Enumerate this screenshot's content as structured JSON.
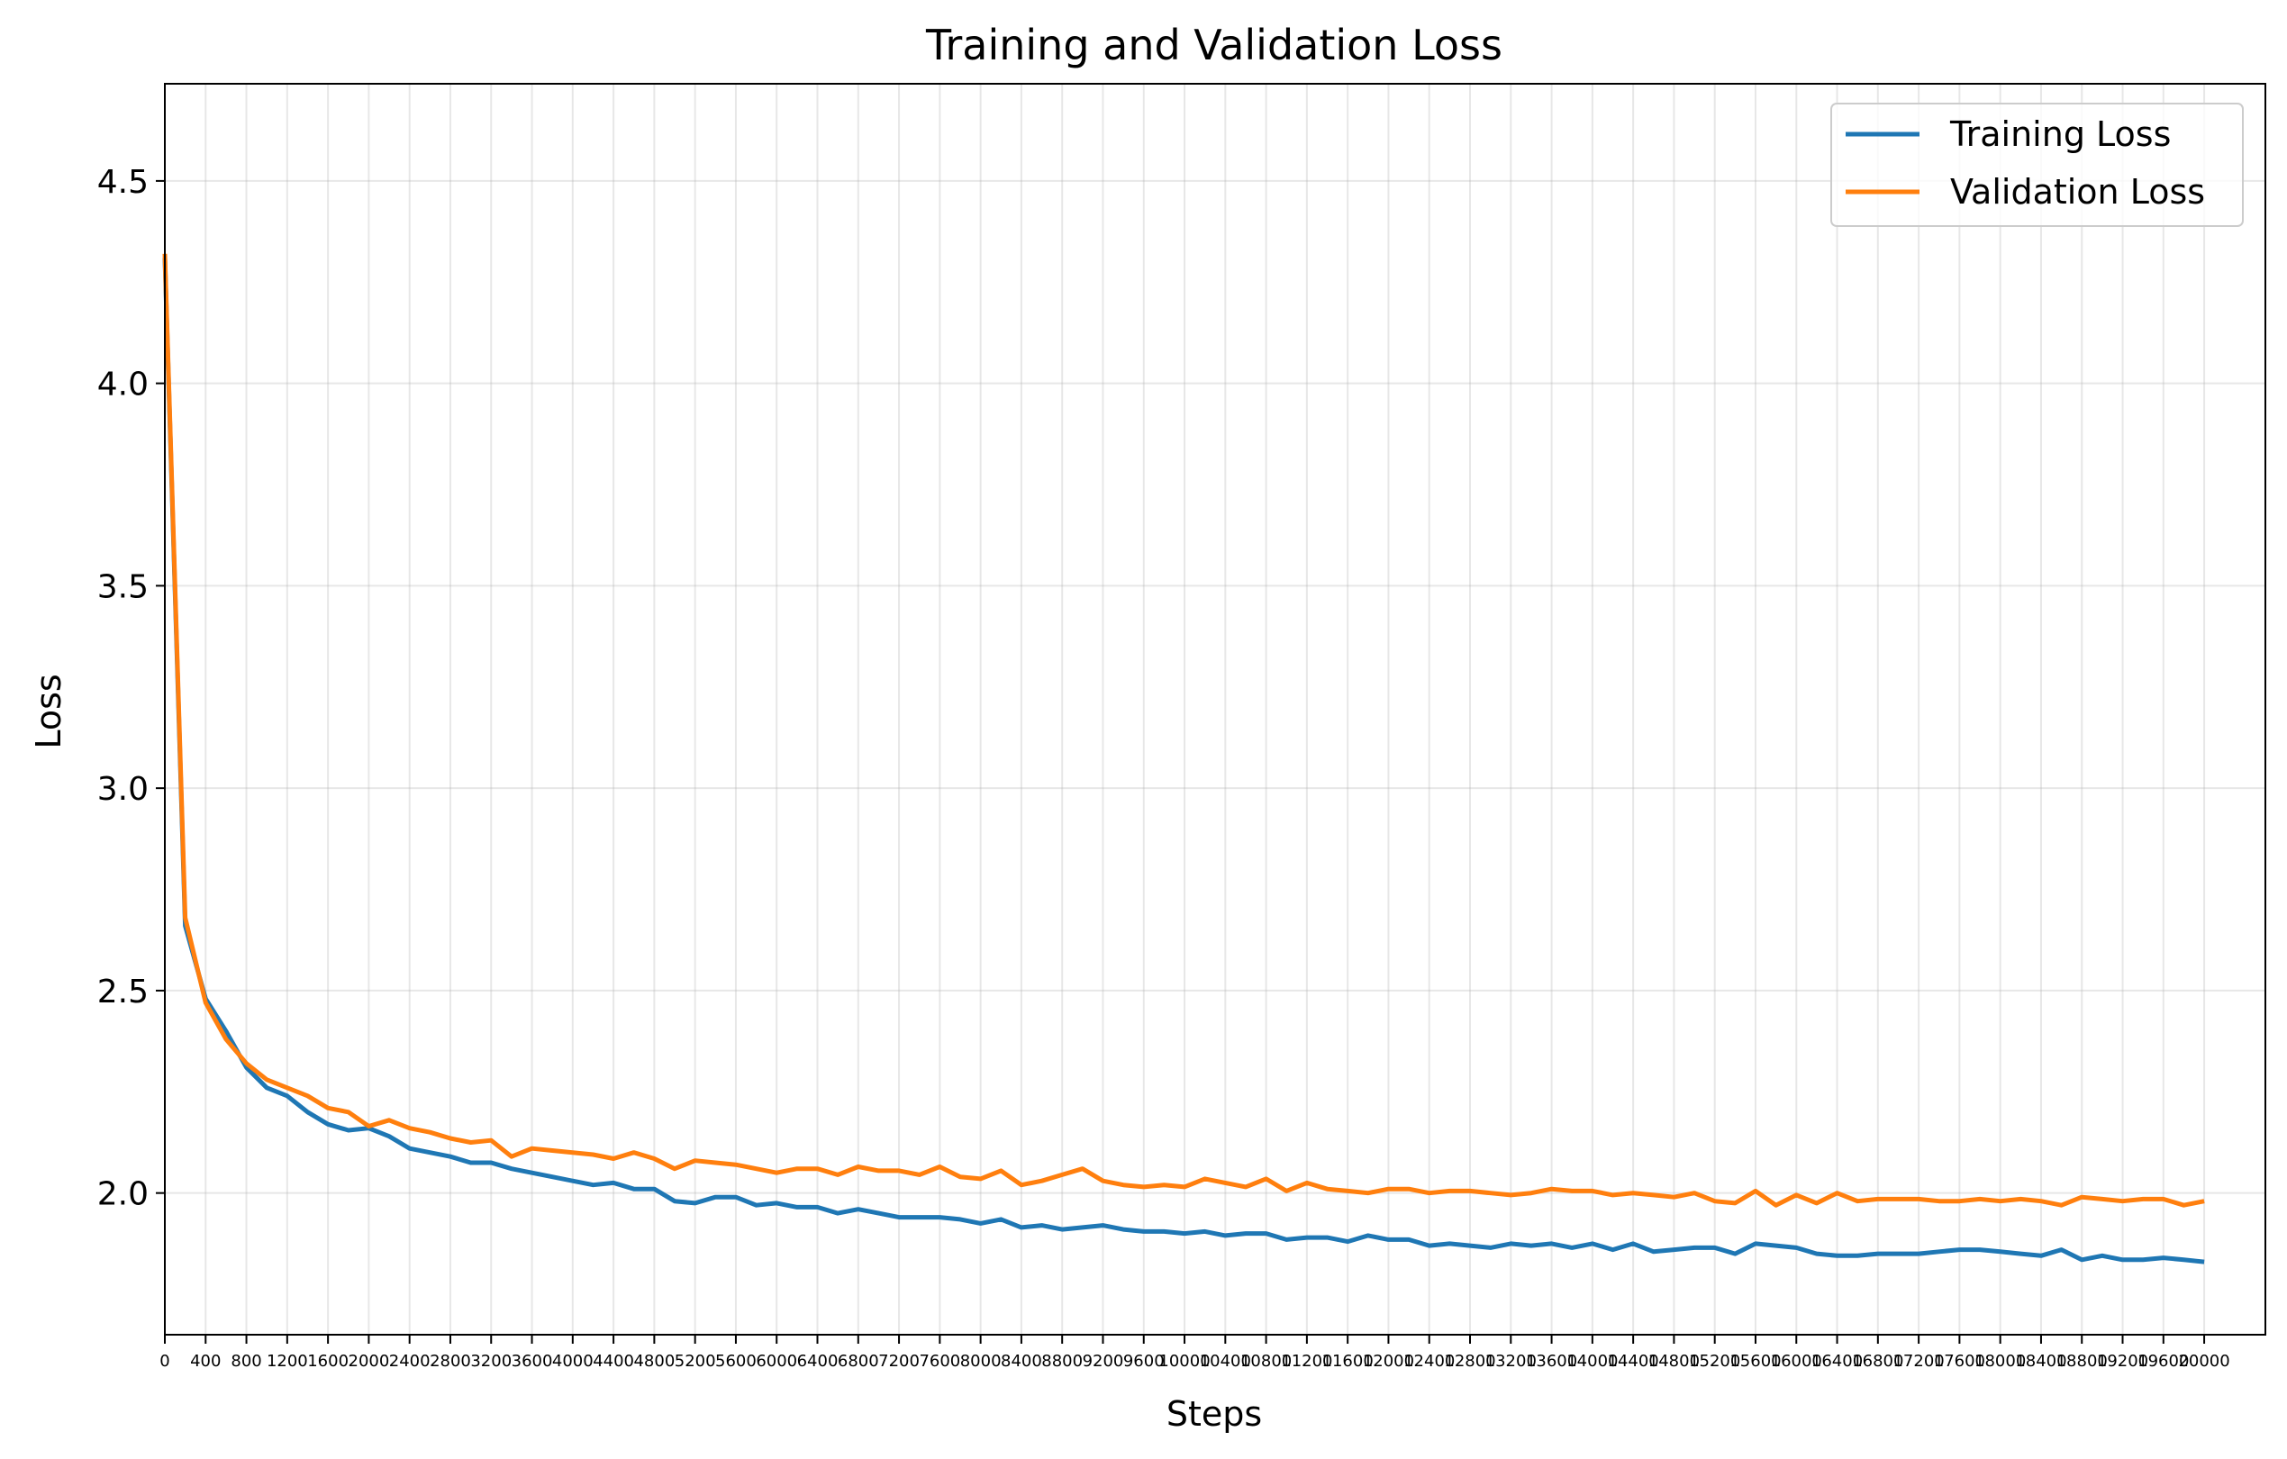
{
  "chart_data": {
    "type": "line",
    "title": "Training and Validation Loss",
    "xlabel": "Steps",
    "ylabel": "Loss",
    "xlim": [
      0,
      20600
    ],
    "ylim": [
      1.65,
      4.74
    ],
    "grid": true,
    "legend_position": "top-right",
    "x_ticks": [
      0,
      400,
      800,
      1200,
      1600,
      2000,
      2400,
      2800,
      3200,
      3600,
      4000,
      4400,
      4800,
      5200,
      5600,
      6000,
      6400,
      6800,
      7200,
      7600,
      8000,
      8400,
      8800,
      9200,
      9600,
      10000,
      10400,
      10800,
      11200,
      11600,
      12000,
      12400,
      12800,
      13200,
      13600,
      14000,
      14400,
      14800,
      15200,
      15600,
      16000,
      16400,
      16800,
      17200,
      17600,
      18000,
      18400,
      18800,
      19200,
      19600,
      20000
    ],
    "x_tick_labels": [
      "0",
      "400",
      "800",
      "1200",
      "1600",
      "2000",
      "2400",
      "2800",
      "3200",
      "3600",
      "4000",
      "4400",
      "4800",
      "5200",
      "5600",
      "6000",
      "6400",
      "6800",
      "7200",
      "7600",
      "8000",
      "8400",
      "8800",
      "9200",
      "9600",
      "10000",
      "10400",
      "10800",
      "11200",
      "11600",
      "12000",
      "12400",
      "12800",
      "13200",
      "13600",
      "14000",
      "14400",
      "14800",
      "15200",
      "15600",
      "16000",
      "16400",
      "16800",
      "17200",
      "17600",
      "18000",
      "18400",
      "18800",
      "19200",
      "19600",
      "20000"
    ],
    "y_ticks": [
      2.0,
      2.5,
      3.0,
      3.5,
      4.0,
      4.5
    ],
    "y_tick_labels": [
      "2.0",
      "2.5",
      "3.0",
      "3.5",
      "4.0",
      "4.5"
    ],
    "x": [
      0,
      200,
      400,
      600,
      800,
      1000,
      1200,
      1400,
      1600,
      1800,
      2000,
      2200,
      2400,
      2600,
      2800,
      3000,
      3200,
      3400,
      3600,
      3800,
      4000,
      4200,
      4400,
      4600,
      4800,
      5000,
      5200,
      5400,
      5600,
      5800,
      6000,
      6200,
      6400,
      6600,
      6800,
      7000,
      7200,
      7400,
      7600,
      7800,
      8000,
      8200,
      8400,
      8600,
      8800,
      9000,
      9200,
      9400,
      9600,
      9800,
      10000,
      10200,
      10400,
      10600,
      10800,
      11000,
      11200,
      11400,
      11600,
      11800,
      12000,
      12200,
      12400,
      12600,
      12800,
      13000,
      13200,
      13400,
      13600,
      13800,
      14000,
      14200,
      14400,
      14600,
      14800,
      15000,
      15200,
      15400,
      15600,
      15800,
      16000,
      16200,
      16400,
      16600,
      16800,
      17000,
      17200,
      17400,
      17600,
      17800,
      18000,
      18200,
      18400,
      18600,
      18800,
      19000,
      19200,
      19400,
      19600,
      19800,
      20000
    ],
    "series": [
      {
        "name": "Training Loss",
        "color": "#1f77b4",
        "values": [
          4.31,
          2.66,
          2.48,
          2.4,
          2.31,
          2.26,
          2.24,
          2.2,
          2.17,
          2.155,
          2.16,
          2.14,
          2.11,
          2.1,
          2.09,
          2.075,
          2.075,
          2.06,
          2.05,
          2.04,
          2.03,
          2.02,
          2.025,
          2.01,
          2.01,
          1.98,
          1.975,
          1.99,
          1.99,
          1.97,
          1.975,
          1.965,
          1.965,
          1.95,
          1.96,
          1.95,
          1.94,
          1.94,
          1.94,
          1.935,
          1.925,
          1.935,
          1.915,
          1.92,
          1.91,
          1.915,
          1.92,
          1.91,
          1.905,
          1.905,
          1.9,
          1.905,
          1.895,
          1.9,
          1.9,
          1.885,
          1.89,
          1.89,
          1.88,
          1.895,
          1.885,
          1.885,
          1.87,
          1.875,
          1.87,
          1.865,
          1.875,
          1.87,
          1.875,
          1.865,
          1.875,
          1.86,
          1.875,
          1.855,
          1.86,
          1.865,
          1.865,
          1.85,
          1.875,
          1.87,
          1.865,
          1.85,
          1.845,
          1.845,
          1.85,
          1.85,
          1.85,
          1.855,
          1.86,
          1.86,
          1.855,
          1.85,
          1.845,
          1.86,
          1.835,
          1.845,
          1.835,
          1.835,
          1.84,
          1.835,
          1.83
        ]
      },
      {
        "name": "Validation Loss",
        "color": "#ff7f0e",
        "values": [
          4.32,
          2.68,
          2.47,
          2.38,
          2.32,
          2.28,
          2.26,
          2.24,
          2.21,
          2.2,
          2.165,
          2.18,
          2.16,
          2.15,
          2.135,
          2.125,
          2.13,
          2.09,
          2.11,
          2.105,
          2.1,
          2.095,
          2.085,
          2.1,
          2.085,
          2.06,
          2.08,
          2.075,
          2.07,
          2.06,
          2.05,
          2.06,
          2.06,
          2.045,
          2.065,
          2.055,
          2.055,
          2.045,
          2.065,
          2.04,
          2.035,
          2.055,
          2.02,
          2.03,
          2.045,
          2.06,
          2.03,
          2.02,
          2.015,
          2.02,
          2.015,
          2.035,
          2.025,
          2.015,
          2.035,
          2.005,
          2.025,
          2.01,
          2.005,
          2.0,
          2.01,
          2.01,
          2.0,
          2.005,
          2.005,
          2.0,
          1.995,
          2.0,
          2.01,
          2.005,
          2.005,
          1.995,
          2.0,
          1.995,
          1.99,
          2.0,
          1.98,
          1.975,
          2.005,
          1.97,
          1.995,
          1.975,
          2.0,
          1.98,
          1.985,
          1.985,
          1.985,
          1.98,
          1.98,
          1.985,
          1.98,
          1.985,
          1.98,
          1.97,
          1.99,
          1.985,
          1.98,
          1.985,
          1.985,
          1.97,
          1.98
        ]
      }
    ]
  }
}
